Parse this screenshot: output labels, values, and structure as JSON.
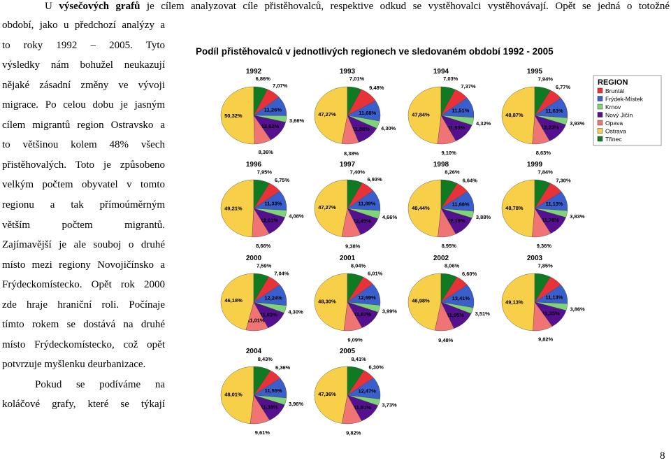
{
  "document": {
    "intro": {
      "before": "U",
      "bold": "výsečových grafů",
      "after": "je cílem analyzovat cíle přistěhovalců, respektive odkud se vystěhovalci vystěhovávají. Opět se jedná o totožné"
    },
    "lines": [
      "období, jako u předchozí analýzy a",
      "to roky 1992 – 2005. Tyto",
      "výsledky nám bohužel neukazují",
      "nějaké zásadní změny ve vývoji",
      "migrace. Po celou dobu je jasným",
      "cílem migrantů region Ostravsko a",
      "to většinou kolem 48% všech",
      "přistěhovalých. Toto je způsobeno",
      "velkým počtem obyvatel v tomto",
      "regionu a tak přímoúměrným",
      "větším počtem migrantů.",
      "Zajímavější je ale souboj o druhé",
      "místo mezi regiony Novojičínsko a",
      "Frýdeckomístecko. Opět rok 2000",
      "zde hraje hraniční roli. Počínaje",
      "tímto rokem se dostává na druhé",
      "místo Frýdeckomístecko, což opět",
      "potvrzuje myšlenku deurbanizace."
    ],
    "paragraph2": [
      "Pokud se podíváme na",
      "koláčové grafy, které se týkají"
    ],
    "page_number": "8"
  },
  "figure": {
    "title": "Podíl přistěhovalců v jednotlivých regionech ve sledovaném období 1992 - 2005",
    "legend": {
      "title": "REGION",
      "categories": [
        "Bruntál",
        "Frýdek-Místek",
        "Krnov",
        "Nový Jičín",
        "Opava",
        "Ostrava",
        "Třinec"
      ],
      "colors": [
        "#e8323a",
        "#3a5fcd",
        "#7fd37a",
        "#55108f",
        "#f07474",
        "#f7cf48",
        "#107a22"
      ]
    }
  },
  "chart_data": [
    {
      "type": "pie",
      "title": "1992",
      "values": [
        7.07,
        11.26,
        3.66,
        12.52,
        8.36,
        50.32,
        6.86
      ],
      "value_labels": [
        "7,07%",
        "11,26%",
        "3,66%",
        "12,52%",
        "8,36%",
        "50,32%",
        "6,86%"
      ]
    },
    {
      "type": "pie",
      "title": "1993",
      "values": [
        9.48,
        11.68,
        4.3,
        11.88,
        8.38,
        47.27,
        7.01
      ],
      "value_labels": [
        "9,48%",
        "11,68%",
        "4,30%",
        "11,88%",
        "8,38%",
        "47,27%",
        "7,01%"
      ]
    },
    {
      "type": "pie",
      "title": "1994",
      "values": [
        7.37,
        11.51,
        4.32,
        11.93,
        9.1,
        47.84,
        7.03
      ],
      "value_labels": [
        "7,37%",
        "11,51%",
        "4,32%",
        "11,93%",
        "9,10%",
        "47,84%",
        "7,03%"
      ]
    },
    {
      "type": "pie",
      "title": "1995",
      "values": [
        6.77,
        11.63,
        3.93,
        12.23,
        8.63,
        48.87,
        7.94
      ],
      "value_labels": [
        "6,77%",
        "11,63%",
        "3,93%",
        "12,23%",
        "8,63%",
        "48,87%",
        "7,94%"
      ]
    },
    {
      "type": "pie",
      "title": "1996",
      "values": [
        6.75,
        11.33,
        4.08,
        12.01,
        8.66,
        49.21,
        7.95
      ],
      "value_labels": [
        "6,75%",
        "11,33%",
        "4,08%",
        "12,01%",
        "8,66%",
        "49,21%",
        "7,95%"
      ]
    },
    {
      "type": "pie",
      "title": "1997",
      "values": [
        6.93,
        11.89,
        4.66,
        12.45,
        9.38,
        47.27,
        7.4
      ],
      "value_labels": [
        "6,93%",
        "11,89%",
        "4,66%",
        "12,45%",
        "9,38%",
        "47,27%",
        "7,40%"
      ]
    },
    {
      "type": "pie",
      "title": "1998",
      "values": [
        6.64,
        11.68,
        3.88,
        12.16,
        8.95,
        48.44,
        8.26
      ],
      "value_labels": [
        "6,64%",
        "11,68%",
        "3,88%",
        "12,16%",
        "8,95%",
        "48,44%",
        "8,26%"
      ]
    },
    {
      "type": "pie",
      "title": "1999",
      "values": [
        7.3,
        11.13,
        3.83,
        11.76,
        9.36,
        48.78,
        7.84
      ],
      "value_labels": [
        "7,30%",
        "11,13%",
        "3,83%",
        "11,76%",
        "9,36%",
        "48,78%",
        "7,84%"
      ]
    },
    {
      "type": "pie",
      "title": "2000",
      "values": [
        7.04,
        12.24,
        4.3,
        11.63,
        11.01,
        46.18,
        7.59
      ],
      "value_labels": [
        "7,04%",
        "12,24%",
        "4,30%",
        "11,63%",
        "11,01%",
        "46,18%",
        "7,59%"
      ]
    },
    {
      "type": "pie",
      "title": "2001",
      "values": [
        6.01,
        12.69,
        3.99,
        11.87,
        9.09,
        48.3,
        8.04
      ],
      "value_labels": [
        "6,01%",
        "12,69%",
        "3,99%",
        "11,87%",
        "9,09%",
        "48,30%",
        "8,04%"
      ]
    },
    {
      "type": "pie",
      "title": "2002",
      "values": [
        6.6,
        13.41,
        3.51,
        11.95,
        9.48,
        46.98,
        8.06
      ],
      "value_labels": [
        "6,60%",
        "13,41%",
        "3,51%",
        "11,95%",
        "9,48%",
        "46,98%",
        "8,06%"
      ]
    },
    {
      "type": "pie",
      "title": "2003",
      "values": [
        6.86,
        11.13,
        3.86,
        11.35,
        9.82,
        49.13,
        7.85
      ],
      "value_labels": [
        null,
        "11,13%",
        "3,86%",
        "11,35%",
        "9,82%",
        "49,13%",
        "7,85%"
      ]
    },
    {
      "type": "pie",
      "title": "2004",
      "values": [
        6.36,
        11.55,
        3.96,
        11.38,
        9.61,
        48.01,
        8.43
      ],
      "value_labels": [
        "6,36%",
        "11,55%",
        "3,96%",
        "11,38%",
        "9,61%",
        "48,01%",
        "8,43%"
      ]
    },
    {
      "type": "pie",
      "title": "2005",
      "values": [
        6.3,
        12.47,
        3.73,
        11.91,
        9.82,
        47.36,
        8.41
      ],
      "value_labels": [
        "6,30%",
        "12,47%",
        "3,73%",
        "11,91%",
        "9,82%",
        "47,36%",
        "8,41%"
      ]
    }
  ]
}
